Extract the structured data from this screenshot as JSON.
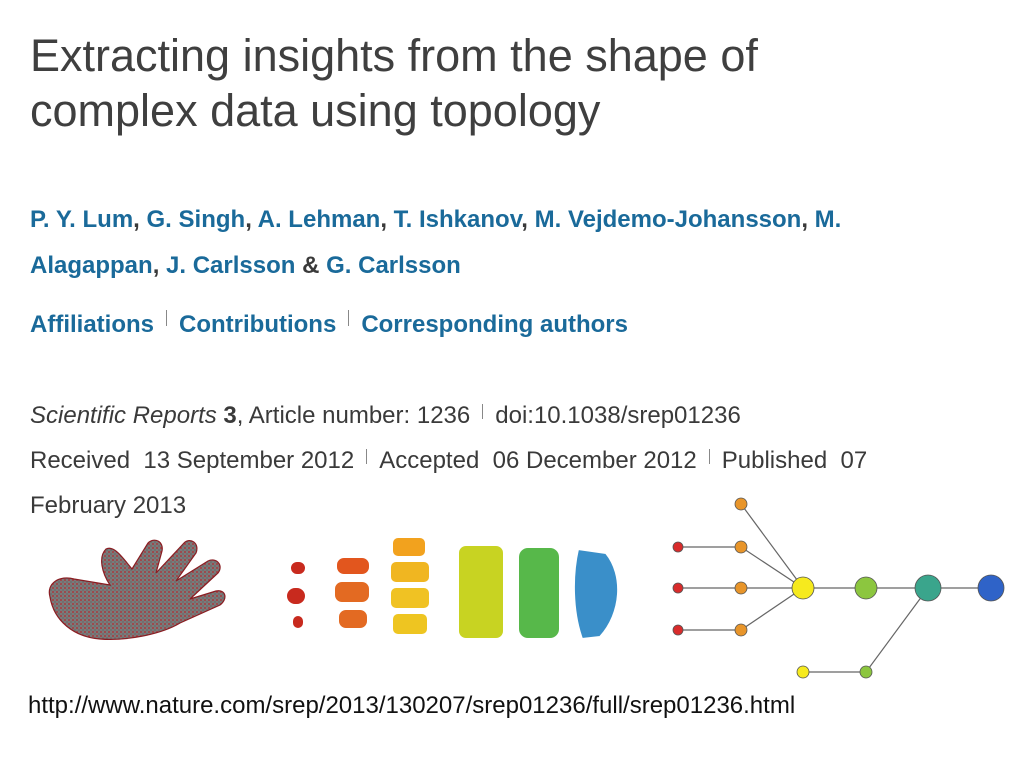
{
  "title_line1": "Extracting insights from the shape of",
  "title_line2": "complex data using topology",
  "authors": {
    "a1": "P. Y. Lum",
    "a2": "G. Singh",
    "a3": "A. Lehman",
    "a4": "T. Ishkanov",
    "a5": "M. Vejdemo-Johansson",
    "a6": "M.",
    "a7": "Alagappan",
    "a8": "J. Carlsson",
    "a9": "G. Carlsson",
    "comma": ",",
    "amp": "&"
  },
  "links": {
    "affiliations": "Affiliations",
    "contributions": "Contributions",
    "corresponding": "Corresponding authors"
  },
  "meta": {
    "journal": "Scientific Reports",
    "volume": "3",
    "article": "Article number: 1236",
    "doi": "doi:10.1038/srep01236",
    "received": "Received  13 September 2012",
    "accepted": "Accepted  06 December 2012",
    "published": "Published  07",
    "published_cont": "February 2013"
  },
  "url": "http://www.nature.com/srep/2013/130207/srep01236/full/srep01236.html",
  "colors": {
    "title": "#3f3f3f",
    "link_blue": "#1a6a9a",
    "node_red": "#d92b2b",
    "node_orange": "#e8952a",
    "node_yellow": "#f6ea1e",
    "node_green": "#8cc63f",
    "node_teal": "#3aa58c",
    "node_blue": "#2f63c8"
  },
  "figure_icons": [
    "hand-point-cloud-icon",
    "hand-slices-gradient-icon",
    "topological-network-graph-icon"
  ]
}
